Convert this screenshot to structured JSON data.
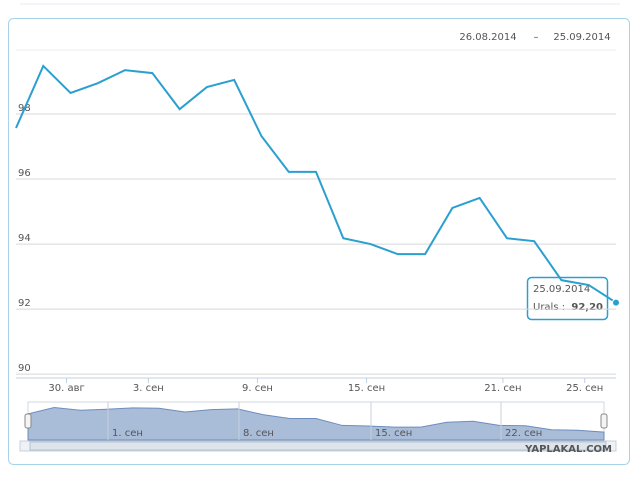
{
  "chart_data": {
    "type": "line",
    "date_range": [
      "26.08.2014",
      "25.09.2014"
    ],
    "range_separator": "–",
    "categories": [
      null,
      null,
      "30. авг",
      null,
      null,
      "3. сен",
      null,
      null,
      null,
      "9. сен",
      null,
      null,
      null,
      "15. сен",
      null,
      null,
      null,
      null,
      "21. сен",
      null,
      null,
      "25. сен",
      null
    ],
    "series": [
      {
        "name": "Urals",
        "color": "#2a9fd0",
        "values": [
          97.57,
          99.48,
          98.65,
          98.95,
          99.35,
          99.26,
          98.15,
          98.83,
          99.05,
          97.32,
          96.22,
          96.22,
          94.18,
          94.0,
          93.69,
          93.69,
          95.11,
          95.42,
          94.18,
          94.09,
          92.89,
          92.74,
          92.2
        ]
      }
    ],
    "ylim": [
      89.88,
      99.97
    ],
    "yticks": [
      90,
      92,
      94,
      96,
      98
    ],
    "grid": true,
    "tooltip": {
      "x": "25.09.2014",
      "label": "Urals :",
      "value_label": "92,20"
    },
    "navigator": {
      "labels": [
        "1. сен",
        "8. сен",
        "15. сен",
        "22. сен"
      ],
      "color": "#a9bcd8"
    },
    "watermark": "YAPLAKAL.COM"
  }
}
